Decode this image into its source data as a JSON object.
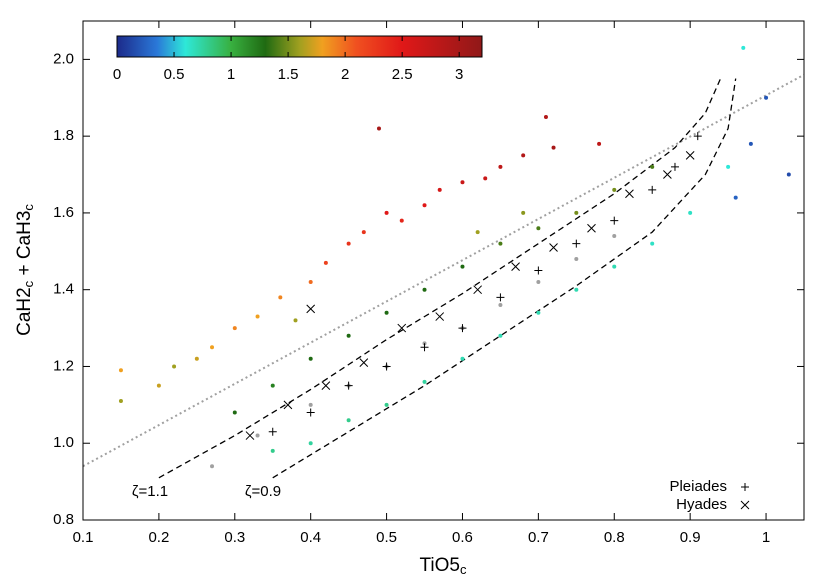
{
  "chart_data": {
    "type": "scatter",
    "xlabel_parts": [
      "TiO5",
      "c"
    ],
    "ylabel_parts": [
      "CaH2",
      "c",
      " + CaH3",
      "c"
    ],
    "xlim": [
      0.1,
      1.05
    ],
    "ylim": [
      0.8,
      2.1
    ],
    "xticks": [
      0.1,
      0.2,
      0.3,
      0.4,
      0.5,
      0.6,
      0.7,
      0.8,
      0.9,
      1
    ],
    "yticks": [
      0.8,
      {
        "value": 1,
        "label": "1.0"
      },
      1.2,
      1.4,
      1.6,
      1.8,
      {
        "value": 2,
        "label": "2.0"
      }
    ],
    "legend": "lower right",
    "colorbar": {
      "lim": [
        0,
        3.2
      ],
      "ticks": [
        0,
        0.5,
        1,
        1.5,
        2,
        2.5,
        3
      ],
      "colormap": [
        {
          "at": 0,
          "color": "#1c2a8a"
        },
        {
          "at": 0.35,
          "color": "#2a78d8"
        },
        {
          "at": 0.6,
          "color": "#2ee8d8"
        },
        {
          "at": 1.0,
          "color": "#38b040"
        },
        {
          "at": 1.3,
          "color": "#1f6a12"
        },
        {
          "at": 1.6,
          "color": "#a0a020"
        },
        {
          "at": 1.8,
          "color": "#f0a020"
        },
        {
          "at": 2.1,
          "color": "#f05020"
        },
        {
          "at": 2.5,
          "color": "#e01818"
        },
        {
          "at": 3.2,
          "color": "#901818"
        }
      ]
    },
    "series": [
      {
        "marker": "dot",
        "colorby": "z",
        "x": [
          0.15,
          0.15,
          0.2,
          0.22,
          0.25,
          0.27,
          0.3,
          0.33,
          0.36,
          0.38,
          0.4,
          0.42,
          0.45,
          0.47,
          0.5,
          0.52,
          0.55,
          0.57,
          0.6,
          0.63,
          0.65,
          0.68,
          0.72,
          0.78,
          0.71,
          0.49,
          0.3,
          0.35,
          0.4,
          0.45,
          0.5,
          0.55,
          0.6,
          0.65,
          0.7,
          0.75,
          0.8,
          0.85,
          0.62,
          0.68,
          0.35,
          0.4,
          0.45,
          0.5,
          0.55,
          0.6,
          0.65,
          0.7,
          0.75,
          0.8,
          0.85,
          0.9,
          0.95,
          0.97,
          1.0,
          1.03,
          0.98,
          0.96
        ],
        "y": [
          1.19,
          1.11,
          1.15,
          1.2,
          1.22,
          1.25,
          1.3,
          1.33,
          1.38,
          1.32,
          1.42,
          1.47,
          1.52,
          1.55,
          1.6,
          1.58,
          1.62,
          1.66,
          1.68,
          1.69,
          1.72,
          1.75,
          1.77,
          1.78,
          1.85,
          1.82,
          1.08,
          1.15,
          1.22,
          1.28,
          1.34,
          1.4,
          1.46,
          1.52,
          1.56,
          1.6,
          1.66,
          1.72,
          1.55,
          1.6,
          0.98,
          1.0,
          1.06,
          1.1,
          1.16,
          1.22,
          1.28,
          1.34,
          1.4,
          1.46,
          1.52,
          1.6,
          1.72,
          2.03,
          1.9,
          1.7,
          1.78,
          1.64
        ],
        "z": [
          1.8,
          1.6,
          1.7,
          1.6,
          1.7,
          1.8,
          1.9,
          1.8,
          1.9,
          1.6,
          2.0,
          2.2,
          2.3,
          2.3,
          2.5,
          2.4,
          2.5,
          2.6,
          2.7,
          2.7,
          2.8,
          2.9,
          3.0,
          2.8,
          2.9,
          3.0,
          1.3,
          1.2,
          1.3,
          1.3,
          1.3,
          1.3,
          1.3,
          1.4,
          1.4,
          1.5,
          1.5,
          1.4,
          1.6,
          1.55,
          0.8,
          0.75,
          0.8,
          0.8,
          0.75,
          0.7,
          0.7,
          0.7,
          0.7,
          0.7,
          0.65,
          0.65,
          0.6,
          0.6,
          0.2,
          0.15,
          0.2,
          0.25
        ]
      },
      {
        "marker": "dot",
        "color": "#a0a0a0",
        "x": [
          0.4,
          0.45,
          0.5,
          0.55,
          0.6,
          0.65,
          0.7,
          0.75,
          0.8,
          0.27,
          0.33
        ],
        "y": [
          1.1,
          1.15,
          1.2,
          1.26,
          1.3,
          1.36,
          1.42,
          1.48,
          1.54,
          0.94,
          1.02
        ]
      },
      {
        "name": "Pleiades",
        "marker": "plus",
        "color": "#000000",
        "x": [
          0.35,
          0.4,
          0.45,
          0.5,
          0.55,
          0.6,
          0.65,
          0.7,
          0.75,
          0.8,
          0.85,
          0.88,
          0.91
        ],
        "y": [
          1.03,
          1.08,
          1.15,
          1.2,
          1.25,
          1.3,
          1.38,
          1.45,
          1.52,
          1.58,
          1.66,
          1.72,
          1.8
        ]
      },
      {
        "name": "Hyades",
        "marker": "cross",
        "color": "#000000",
        "x": [
          0.32,
          0.37,
          0.42,
          0.47,
          0.52,
          0.57,
          0.62,
          0.67,
          0.72,
          0.77,
          0.82,
          0.87,
          0.9,
          0.4
        ],
        "y": [
          1.02,
          1.1,
          1.15,
          1.21,
          1.3,
          1.33,
          1.4,
          1.46,
          1.51,
          1.56,
          1.65,
          1.7,
          1.75,
          1.35
        ]
      }
    ],
    "lines": [
      {
        "style": "dotted",
        "color": "#a0a0a0",
        "x": [
          0.1,
          1.05
        ],
        "y": [
          0.94,
          1.96
        ]
      },
      {
        "style": "dashed",
        "color": "#000000",
        "x": [
          0.2,
          0.3,
          0.4,
          0.5,
          0.6,
          0.7,
          0.8,
          0.88,
          0.92,
          0.94
        ],
        "y": [
          0.91,
          1.02,
          1.14,
          1.27,
          1.39,
          1.52,
          1.65,
          1.77,
          1.86,
          1.95
        ]
      },
      {
        "style": "dashed",
        "color": "#000000",
        "x": [
          0.35,
          0.45,
          0.55,
          0.65,
          0.75,
          0.85,
          0.92,
          0.95,
          0.96
        ],
        "y": [
          0.91,
          1.03,
          1.15,
          1.28,
          1.41,
          1.55,
          1.7,
          1.82,
          1.95
        ]
      }
    ],
    "annotations": [
      "ζ=1.1",
      "ζ=0.9"
    ]
  }
}
